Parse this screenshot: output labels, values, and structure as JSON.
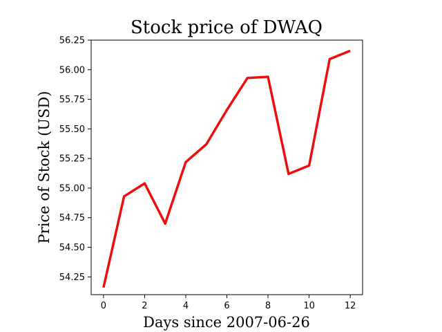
{
  "chart_data": {
    "type": "line",
    "title": "Stock price of DWAQ",
    "xlabel": "Days since 2007-06-26",
    "ylabel": "Price of Stock (USD)",
    "x": [
      0,
      1,
      2,
      3,
      4,
      5,
      6,
      7,
      8,
      9,
      10,
      11,
      12
    ],
    "series": [
      {
        "values": [
          54.16,
          54.93,
          55.04,
          54.7,
          55.22,
          55.37,
          55.66,
          55.93,
          55.94,
          55.12,
          55.19,
          56.09,
          56.16
        ],
        "color": "#ee0d0d"
      }
    ],
    "xlim": [
      -0.6,
      12.6
    ],
    "ylim": [
      54.1,
      56.25
    ],
    "xticks": [
      0,
      2,
      4,
      6,
      8,
      10,
      12
    ],
    "xtick_labels": [
      "0",
      "2",
      "4",
      "6",
      "8",
      "10",
      "12"
    ],
    "yticks": [
      54.25,
      54.5,
      54.75,
      55.0,
      55.25,
      55.5,
      55.75,
      56.0,
      56.25
    ],
    "ytick_labels": [
      "54.25",
      "54.50",
      "54.75",
      "55.00",
      "55.25",
      "55.50",
      "55.75",
      "56.00",
      "56.25"
    ],
    "grid": false,
    "legend": "none"
  }
}
